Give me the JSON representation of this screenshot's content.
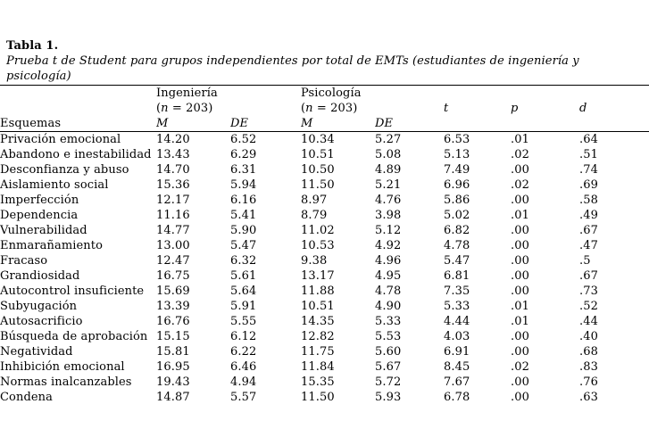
{
  "page": {
    "background": "#ffffff",
    "text_color": "#000000"
  },
  "table": {
    "label": "Tabla 1.",
    "caption": "Prueba t de Student para grupos independientes por total de EMTs (estudiantes de ingeniería y\npsicología)",
    "groups": [
      {
        "name": "Ingeniería",
        "n_open": "(",
        "n_var": "n",
        "n_rest": " = 203)"
      },
      {
        "name": "Psicología",
        "n_open": "(",
        "n_var": "n",
        "n_rest": " = 203)"
      }
    ],
    "stat_cols": {
      "t": "t",
      "p": "p",
      "d": "d"
    },
    "row_header": "Esquemas",
    "mean_header": "M",
    "sd_header": "DE",
    "rows": [
      {
        "esquema": "Privación emocional",
        "m1": "14.20",
        "de1": "6.52",
        "m2": "10.34",
        "de2": "5.27",
        "t": "6.53",
        "p": ".01",
        "d": ".64"
      },
      {
        "esquema": "Abandono e\ninestabilidad",
        "m1": "13.43",
        "de1": "6.29",
        "m2": "10.51",
        "de2": "5.08",
        "t": "5.13",
        "p": ".02",
        "d": ".51"
      },
      {
        "esquema": "Desconfianza y abuso",
        "m1": "14.70",
        "de1": "6.31",
        "m2": "10.50",
        "de2": "4.89",
        "t": "7.49",
        "p": ".00",
        "d": ".74"
      },
      {
        "esquema": "Aislamiento social",
        "m1": "15.36",
        "de1": "5.94",
        "m2": "11.50",
        "de2": "5.21",
        "t": "6.96",
        "p": ".02",
        "d": ".69"
      },
      {
        "esquema": "Imperfección",
        "m1": "12.17",
        "de1": "6.16",
        "m2": "8.97",
        "de2": "4.76",
        "t": "5.86",
        "p": ".00",
        "d": ".58"
      },
      {
        "esquema": "Dependencia",
        "m1": "11.16",
        "de1": "5.41",
        "m2": "8.79",
        "de2": "3.98",
        "t": "5.02",
        "p": ".01",
        "d": ".49"
      },
      {
        "esquema": "Vulnerabilidad",
        "m1": "14.77",
        "de1": "5.90",
        "m2": "11.02",
        "de2": "5.12",
        "t": "6.82",
        "p": ".00",
        "d": ".67"
      },
      {
        "esquema": "Enmarañamiento",
        "m1": "13.00",
        "de1": "5.47",
        "m2": "10.53",
        "de2": "4.92",
        "t": "4.78",
        "p": ".00",
        "d": ".47"
      },
      {
        "esquema": "Fracaso",
        "m1": "12.47",
        "de1": "6.32",
        "m2": "9.38",
        "de2": "4.96",
        "t": "5.47",
        "p": ".00",
        "d": ".5"
      },
      {
        "esquema": "Grandiosidad",
        "m1": "16.75",
        "de1": "5.61",
        "m2": "13.17",
        "de2": "4.95",
        "t": "6.81",
        "p": ".00",
        "d": ".67"
      },
      {
        "esquema": "Autocontrol insuficiente",
        "m1": "15.69",
        "de1": "5.64",
        "m2": "11.88",
        "de2": "4.78",
        "t": "7.35",
        "p": ".00",
        "d": ".73"
      },
      {
        "esquema": "Subyugación",
        "m1": "13.39",
        "de1": "5.91",
        "m2": "10.51",
        "de2": "4.90",
        "t": "5.33",
        "p": ".01",
        "d": ".52"
      },
      {
        "esquema": "Autosacrificio",
        "m1": "16.76",
        "de1": "5.55",
        "m2": "14.35",
        "de2": "5.33",
        "t": "4.44",
        "p": ".01",
        "d": ".44"
      },
      {
        "esquema": "Búsqueda de\naprobación",
        "m1": "15.15",
        "de1": "6.12",
        "m2": "12.82",
        "de2": "5.53",
        "t": "4.03",
        "p": ".00",
        "d": ".40"
      },
      {
        "esquema": "Negatividad",
        "m1": "15.81",
        "de1": "6.22",
        "m2": "11.75",
        "de2": "5.60",
        "t": "6.91",
        "p": ".00",
        "d": ".68"
      },
      {
        "esquema": "Inhibición emocional",
        "m1": "16.95",
        "de1": "6.46",
        "m2": "11.84",
        "de2": "5.67",
        "t": "8.45",
        "p": ".02",
        "d": ".83"
      },
      {
        "esquema": "Normas inalcanzables",
        "m1": "19.43",
        "de1": "4.94",
        "m2": "15.35",
        "de2": "5.72",
        "t": "7.67",
        "p": ".00",
        "d": ".76"
      },
      {
        "esquema": "Condena",
        "m1": "14.87",
        "de1": "5.57",
        "m2": "11.50",
        "de2": "5.93",
        "t": "6.78",
        "p": ".00",
        "d": ".63"
      }
    ]
  }
}
